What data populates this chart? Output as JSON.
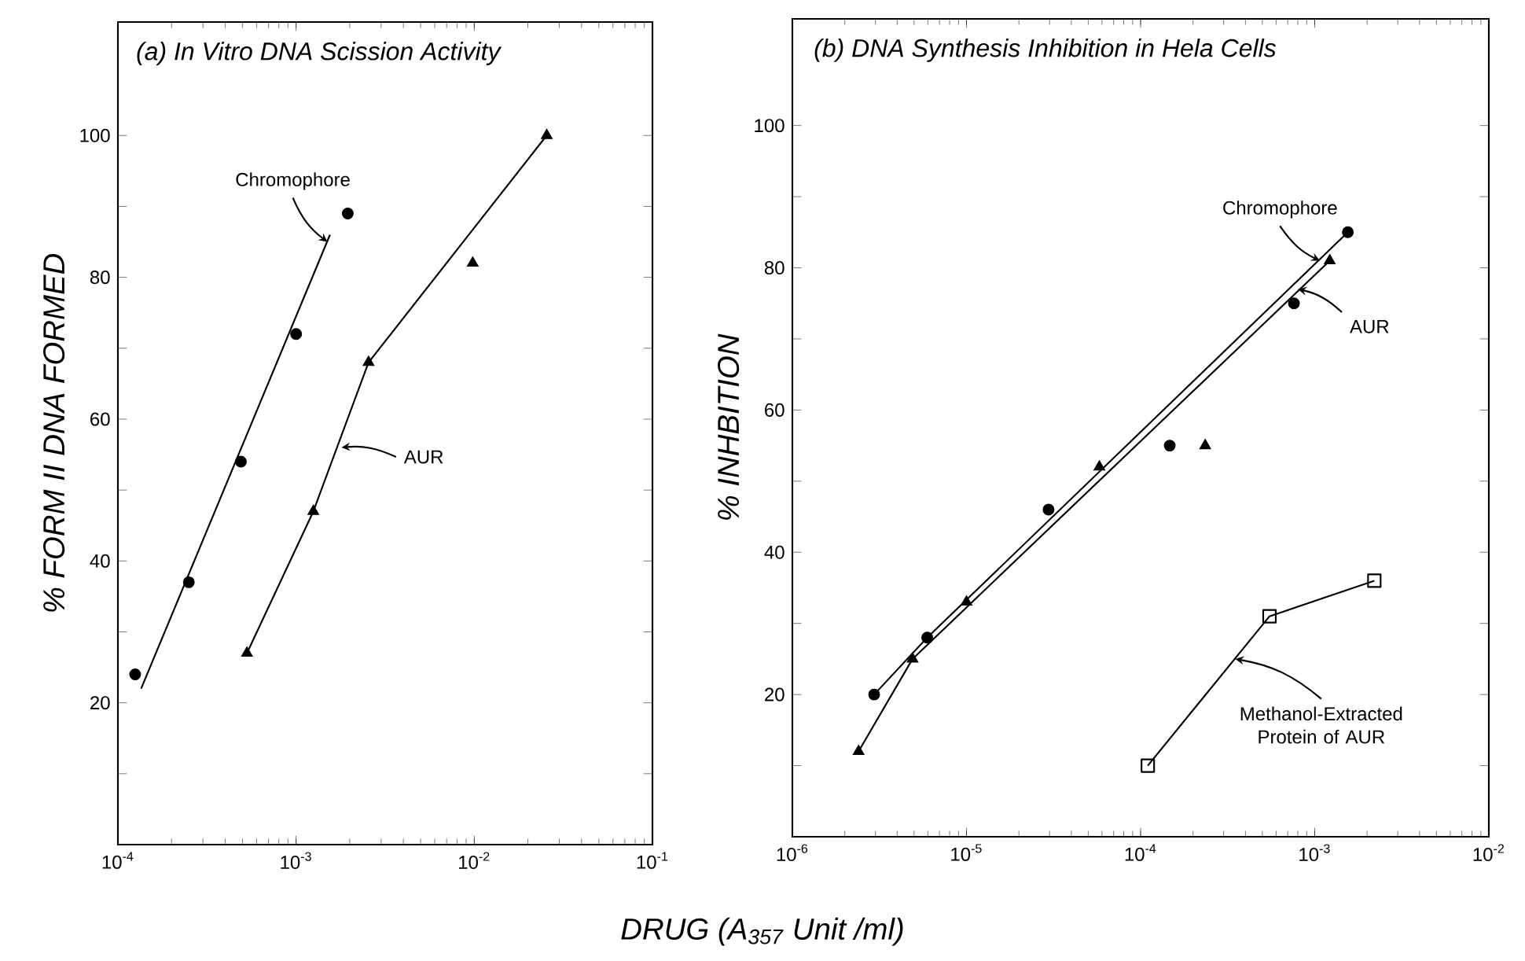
{
  "chart_data": [
    {
      "type": "scatter",
      "title": "(a) In Vitro DNA Scission Activity",
      "ylabel": "% FORM II DNA FORMED",
      "xlabel": "DRUG (A$_{357}$ Unit /ml)",
      "log": "x",
      "xlim": [
        0.0001,
        0.1
      ],
      "ylim": [
        0,
        116
      ],
      "xticks": [
        {
          "value": 0.0001,
          "label": "10$^{-4}$"
        },
        {
          "value": 0.001,
          "label": "10$^{-3}$"
        },
        {
          "value": 0.01,
          "label": "10$^{-2}$"
        },
        {
          "value": 0.1,
          "label": "10$^{-1}$"
        }
      ],
      "yticks": [
        {
          "value": 10,
          "label": null
        },
        20,
        {
          "value": 30,
          "label": null
        },
        40,
        {
          "value": 50,
          "label": null
        },
        60,
        {
          "value": 70,
          "label": null
        },
        80,
        {
          "value": 90,
          "label": null
        },
        100
      ],
      "series": [
        {
          "type": "scatter",
          "marker": "circle",
          "color": "#000000",
          "x": [
            0.000125,
            0.00025,
            0.00049,
            0.001,
            0.00195
          ],
          "values": [
            24,
            37,
            54,
            72,
            89
          ]
        },
        {
          "type": "scatter",
          "marker": "triangle",
          "color": "#000000",
          "x": [
            0.00053,
            0.00125,
            0.00255,
            0.0098,
            0.0255
          ],
          "values": [
            27,
            47,
            68,
            82,
            100
          ]
        },
        {
          "type": "line",
          "color": "#000000",
          "x": [
            0.000135,
            0.00155
          ],
          "values": [
            22,
            86
          ]
        },
        {
          "type": "line",
          "color": "#000000",
          "x": [
            0.00053,
            0.00125,
            0.00255,
            0.0255
          ],
          "values": [
            27,
            47,
            68,
            100
          ]
        }
      ],
      "annotations": [
        {
          "text": "Chromophore",
          "x": 0.0015,
          "y": 85
        },
        {
          "text": "AUR",
          "x": 0.0018,
          "y": 56
        }
      ]
    },
    {
      "type": "scatter",
      "title": "(b) DNA Synthesis Inhibition in Hela Cells",
      "ylabel": "% INHBITION",
      "log": "x",
      "xlim": [
        1e-06,
        0.01
      ],
      "ylim": [
        0,
        115
      ],
      "xticks": [
        {
          "value": 1e-06,
          "label": "10$^{-6}$"
        },
        {
          "value": 1e-05,
          "label": "10$^{-5}$"
        },
        {
          "value": 0.0001,
          "label": "10$^{-4}$"
        },
        {
          "value": 0.001,
          "label": "10$^{-3}$"
        },
        {
          "value": 0.01,
          "label": "10$^{-2}$"
        }
      ],
      "yticks": [
        {
          "value": 10,
          "label": null
        },
        20,
        {
          "value": 30,
          "label": null
        },
        40,
        {
          "value": 50,
          "label": null
        },
        60,
        {
          "value": 70,
          "label": null
        },
        80,
        {
          "value": 90,
          "label": null
        },
        100
      ],
      "series": [
        {
          "type": "scatter",
          "marker": "circle",
          "color": "#000000",
          "x": [
            2.95e-06,
            5.95e-06,
            2.96e-05,
            0.000147,
            0.00076,
            0.00155
          ],
          "values": [
            20,
            28,
            46,
            55,
            75,
            85
          ]
        },
        {
          "type": "scatter",
          "marker": "triangle",
          "color": "#000000",
          "x": [
            2.4e-06,
            4.9e-06,
            1e-05,
            5.8e-05,
            0.000235,
            0.00122
          ],
          "values": [
            12,
            25,
            33,
            52,
            55,
            81
          ]
        },
        {
          "type": "line",
          "color": "#000000",
          "x": [
            2.95e-06,
            5.95e-06,
            0.00155
          ],
          "values": [
            20,
            28,
            85
          ]
        },
        {
          "type": "line",
          "color": "#000000",
          "x": [
            2.4e-06,
            4.9e-06,
            0.00122
          ],
          "values": [
            12,
            25,
            81
          ]
        },
        {
          "type": "line",
          "marker": "square",
          "color": "#000000",
          "x": [
            0.00011,
            0.00055,
            0.0022
          ],
          "values": [
            10,
            31,
            36
          ]
        }
      ],
      "annotations": [
        {
          "text": "Chromophore",
          "x": 0.00107,
          "y": 81
        },
        {
          "text": "AUR",
          "x": 0.0008,
          "y": 77
        },
        {
          "text": "Methanol-Extracted Protein of AUR",
          "x": 0.00035,
          "y": 25
        }
      ]
    }
  ]
}
